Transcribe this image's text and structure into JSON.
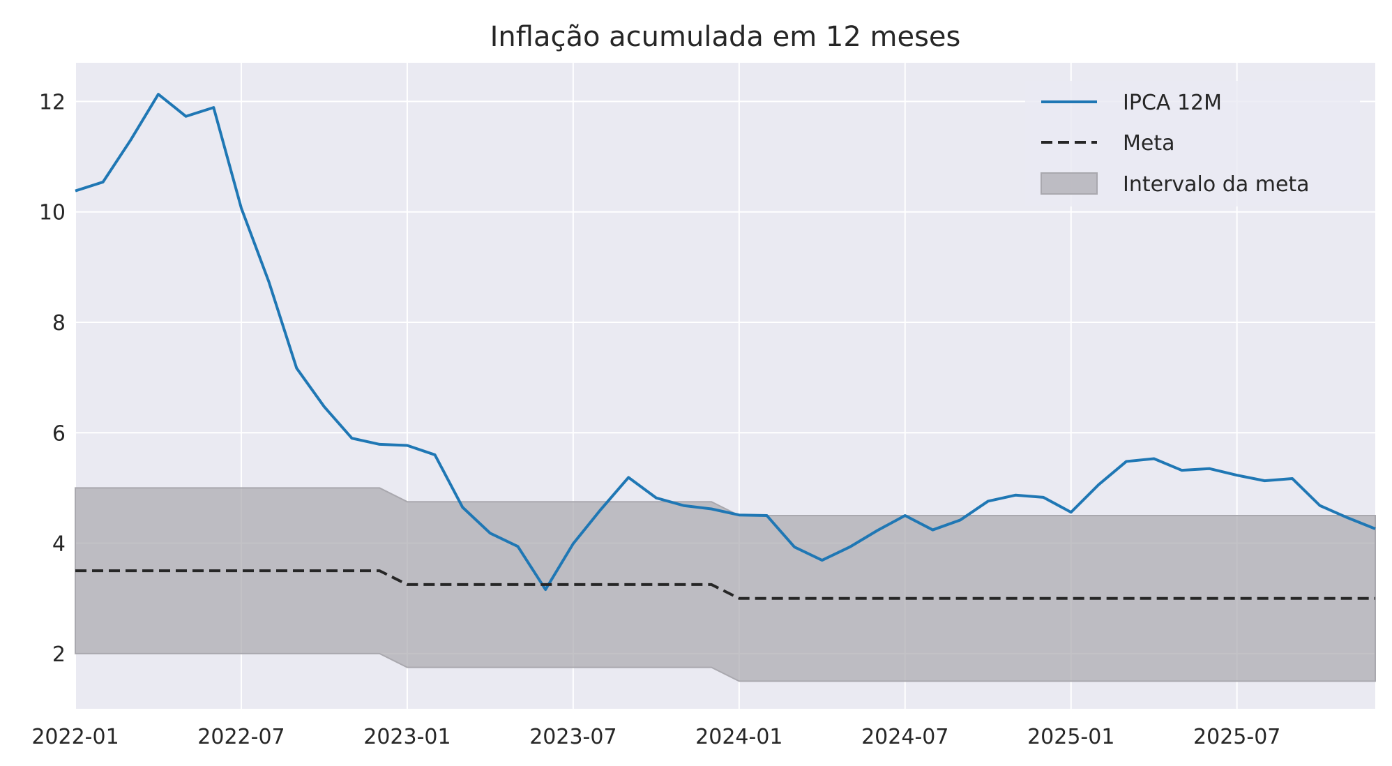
{
  "chart_data": {
    "type": "line",
    "title": "Inflação acumulada em 12 meses",
    "xlabel": "",
    "ylabel": "",
    "x": [
      "2022-01",
      "2022-02",
      "2022-03",
      "2022-04",
      "2022-05",
      "2022-06",
      "2022-07",
      "2022-08",
      "2022-09",
      "2022-10",
      "2022-11",
      "2022-12",
      "2023-01",
      "2023-02",
      "2023-03",
      "2023-04",
      "2023-05",
      "2023-06",
      "2023-07",
      "2023-08",
      "2023-09",
      "2023-10",
      "2023-11",
      "2023-12",
      "2024-01",
      "2024-02",
      "2024-03",
      "2024-04",
      "2024-05",
      "2024-06",
      "2024-07",
      "2024-08",
      "2024-09",
      "2024-10",
      "2024-11",
      "2024-12",
      "2025-01",
      "2025-02",
      "2025-03",
      "2025-04",
      "2025-05",
      "2025-06",
      "2025-07",
      "2025-08",
      "2025-09",
      "2025-10",
      "2025-11",
      "2025-12"
    ],
    "xticks": [
      "2022-01",
      "2022-07",
      "2023-01",
      "2023-07",
      "2024-01",
      "2024-07",
      "2025-01",
      "2025-07"
    ],
    "yticks": [
      2,
      4,
      6,
      8,
      10,
      12
    ],
    "xlim": [
      "2022-01",
      "2025-12"
    ],
    "ylim": [
      1.0,
      12.7
    ],
    "grid": true,
    "legend_position": "top-right",
    "series": [
      {
        "name": "IPCA 12M",
        "style": "solid",
        "color": "#1f77b4",
        "values": [
          10.38,
          10.54,
          11.3,
          12.13,
          11.73,
          11.89,
          10.07,
          8.73,
          7.17,
          6.47,
          5.9,
          5.79,
          5.77,
          5.6,
          4.65,
          4.18,
          3.94,
          3.16,
          3.99,
          4.61,
          5.19,
          4.82,
          4.68,
          4.62,
          4.51,
          4.5,
          3.93,
          3.69,
          3.93,
          4.23,
          4.5,
          4.24,
          4.42,
          4.76,
          4.87,
          4.83,
          4.56,
          5.06,
          5.48,
          5.53,
          5.32,
          5.35,
          5.23,
          5.13,
          5.17,
          4.68,
          4.46,
          4.26
        ]
      },
      {
        "name": "Meta",
        "style": "dashed",
        "color": "#262626",
        "values": [
          3.5,
          3.5,
          3.5,
          3.5,
          3.5,
          3.5,
          3.5,
          3.5,
          3.5,
          3.5,
          3.5,
          3.5,
          3.25,
          3.25,
          3.25,
          3.25,
          3.25,
          3.25,
          3.25,
          3.25,
          3.25,
          3.25,
          3.25,
          3.25,
          3.0,
          3.0,
          3.0,
          3.0,
          3.0,
          3.0,
          3.0,
          3.0,
          3.0,
          3.0,
          3.0,
          3.0,
          3.0,
          3.0,
          3.0,
          3.0,
          3.0,
          3.0,
          3.0,
          3.0,
          3.0,
          3.0,
          3.0,
          3.0
        ]
      }
    ],
    "band": {
      "name": "Intervalo da meta",
      "color": "#a9a8ae",
      "lower": [
        2.0,
        2.0,
        2.0,
        2.0,
        2.0,
        2.0,
        2.0,
        2.0,
        2.0,
        2.0,
        2.0,
        2.0,
        1.75,
        1.75,
        1.75,
        1.75,
        1.75,
        1.75,
        1.75,
        1.75,
        1.75,
        1.75,
        1.75,
        1.75,
        1.5,
        1.5,
        1.5,
        1.5,
        1.5,
        1.5,
        1.5,
        1.5,
        1.5,
        1.5,
        1.5,
        1.5,
        1.5,
        1.5,
        1.5,
        1.5,
        1.5,
        1.5,
        1.5,
        1.5,
        1.5,
        1.5,
        1.5,
        1.5
      ],
      "upper": [
        5.0,
        5.0,
        5.0,
        5.0,
        5.0,
        5.0,
        5.0,
        5.0,
        5.0,
        5.0,
        5.0,
        5.0,
        4.75,
        4.75,
        4.75,
        4.75,
        4.75,
        4.75,
        4.75,
        4.75,
        4.75,
        4.75,
        4.75,
        4.75,
        4.5,
        4.5,
        4.5,
        4.5,
        4.5,
        4.5,
        4.5,
        4.5,
        4.5,
        4.5,
        4.5,
        4.5,
        4.5,
        4.5,
        4.5,
        4.5,
        4.5,
        4.5,
        4.5,
        4.5,
        4.5,
        4.5,
        4.5,
        4.5
      ]
    },
    "colors": {
      "plot_background": "#eaeaf2",
      "grid": "#ffffff",
      "text": "#262626"
    }
  }
}
